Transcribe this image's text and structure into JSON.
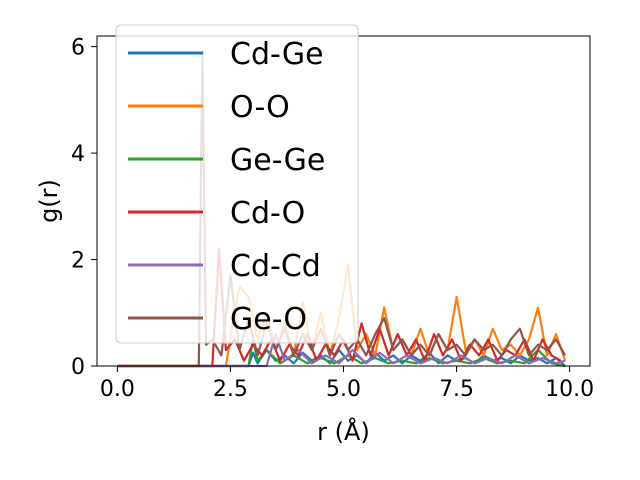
{
  "chart_data": {
    "type": "line",
    "xlabel": "r (Å)",
    "ylabel": "g(r)",
    "xlim": [
      -0.45,
      10.45
    ],
    "ylim": [
      0,
      6.2
    ],
    "xticks": [
      0.0,
      2.5,
      5.0,
      7.5,
      10.0
    ],
    "xtick_labels": [
      "0.0",
      "2.5",
      "5.0",
      "7.5",
      "10.0"
    ],
    "yticks": [
      0,
      2,
      4,
      6
    ],
    "ytick_labels": [
      "0",
      "2",
      "4",
      "6"
    ],
    "grid": false,
    "legend_position": "upper-left",
    "series": [
      {
        "name": "Cd-Ge",
        "color": "#1f77b4",
        "x": [
          0,
          2.9,
          3.0,
          3.1,
          3.3,
          3.5,
          3.7,
          3.9,
          4.1,
          4.3,
          4.5,
          4.7,
          4.9,
          5.1,
          5.3,
          5.5,
          5.7,
          5.9,
          6.1,
          6.3,
          6.5,
          6.7,
          6.9,
          7.1,
          7.3,
          7.5,
          7.7,
          7.9,
          8.1,
          8.3,
          8.5,
          8.7,
          8.9,
          9.1,
          9.3,
          9.5,
          9.7,
          9.9
        ],
        "y": [
          0,
          0,
          0.25,
          0.05,
          0.3,
          0.1,
          0.2,
          0.05,
          0.25,
          0.1,
          0.2,
          0.05,
          0.3,
          0.1,
          0.2,
          0.05,
          0.25,
          0.1,
          0.2,
          0.05,
          0.2,
          0.1,
          0.25,
          0.05,
          0.2,
          0.1,
          0.15,
          0.05,
          0.2,
          0.1,
          0.15,
          0.05,
          0.2,
          0.1,
          0.15,
          0.05,
          0.15,
          0
        ]
      },
      {
        "name": "O-O",
        "color": "#ff7f0e",
        "x": [
          0,
          2.4,
          2.55,
          2.7,
          2.9,
          3.1,
          3.3,
          3.5,
          3.7,
          3.9,
          4.1,
          4.3,
          4.5,
          4.7,
          4.9,
          5.1,
          5.3,
          5.5,
          5.7,
          5.9,
          6.1,
          6.3,
          6.5,
          6.7,
          6.9,
          7.1,
          7.3,
          7.5,
          7.7,
          7.9,
          8.1,
          8.3,
          8.5,
          8.7,
          8.9,
          9.1,
          9.3,
          9.5,
          9.7,
          9.9
        ],
        "y": [
          0,
          0,
          0.8,
          1.5,
          1.3,
          0.5,
          1.0,
          0.3,
          0.8,
          0.2,
          1.2,
          0.3,
          1.0,
          0.2,
          0.9,
          1.9,
          0.3,
          0.6,
          0.2,
          1.1,
          0.3,
          0.5,
          0.2,
          0.7,
          0.2,
          0.6,
          0.3,
          1.3,
          0.3,
          0.5,
          0.2,
          0.7,
          0.3,
          0.4,
          0.2,
          0.5,
          1.1,
          0.2,
          0.6,
          0.1
        ]
      },
      {
        "name": "Ge-Ge",
        "color": "#2ca02c",
        "x": [
          0,
          2.9,
          3.0,
          3.1,
          3.3,
          3.6,
          3.9,
          4.2,
          4.5,
          4.8,
          5.1,
          5.4,
          5.7,
          6.0,
          6.3,
          6.6,
          6.9,
          7.2,
          7.5,
          7.8,
          8.1,
          8.4,
          8.7,
          9.0,
          9.3,
          9.6,
          9.9
        ],
        "y": [
          0,
          0,
          0.5,
          0.1,
          0.3,
          0.05,
          0.2,
          0.05,
          0.15,
          0.05,
          0.2,
          0.05,
          0.15,
          0.05,
          0.1,
          0.05,
          0.15,
          0.05,
          0.1,
          0.05,
          0.15,
          0.05,
          0.1,
          0.05,
          0.3,
          0.05,
          0
        ]
      },
      {
        "name": "Cd-O",
        "color": "#d62728",
        "x": [
          0,
          2.1,
          2.25,
          2.4,
          2.6,
          2.8,
          3.0,
          3.2,
          3.4,
          3.6,
          3.8,
          4.0,
          4.2,
          4.4,
          4.6,
          4.8,
          5.0,
          5.2,
          5.4,
          5.6,
          5.8,
          6.0,
          6.2,
          6.4,
          6.6,
          6.8,
          7.0,
          7.2,
          7.4,
          7.6,
          7.8,
          8.0,
          8.2,
          8.4,
          8.6,
          8.8,
          9.0,
          9.2,
          9.4,
          9.6,
          9.8
        ],
        "y": [
          0,
          0,
          2.2,
          0.3,
          0.5,
          0.1,
          0.4,
          0.2,
          0.5,
          0.1,
          0.4,
          0.2,
          0.6,
          0.1,
          0.4,
          0.2,
          0.5,
          0.1,
          0.8,
          0.2,
          0.7,
          0.2,
          0.6,
          0.2,
          0.5,
          0.1,
          0.6,
          0.2,
          0.5,
          0.1,
          0.4,
          0.2,
          0.5,
          0.1,
          0.3,
          0.2,
          0.5,
          0.1,
          0.5,
          0.2,
          0.1
        ]
      },
      {
        "name": "Cd-Cd",
        "color": "#9467bd",
        "x": [
          0,
          3.3,
          3.5,
          3.7,
          4.0,
          4.3,
          4.6,
          4.9,
          5.2,
          5.5,
          5.8,
          6.1,
          6.4,
          6.7,
          7.0,
          7.3,
          7.6,
          7.9,
          8.2,
          8.5,
          8.8,
          9.1,
          9.4,
          9.7,
          9.9
        ],
        "y": [
          0,
          0,
          0.6,
          0.1,
          0.3,
          0.05,
          0.2,
          0.05,
          0.3,
          0.05,
          0.25,
          0.05,
          0.2,
          0.05,
          0.15,
          0.05,
          0.2,
          0.05,
          0.15,
          0.05,
          0.2,
          0.05,
          0.15,
          0.05,
          0.1
        ]
      },
      {
        "name": "Ge-O",
        "color": "#8c564b",
        "x": [
          0,
          1.8,
          1.88,
          1.96,
          2.1,
          2.3,
          2.5,
          2.7,
          2.9,
          3.1,
          3.3,
          3.5,
          3.7,
          3.9,
          4.1,
          4.3,
          4.5,
          4.7,
          4.9,
          5.1,
          5.3,
          5.5,
          5.7,
          5.9,
          6.1,
          6.3,
          6.5,
          6.7,
          6.9,
          7.1,
          7.3,
          7.5,
          7.7,
          7.9,
          8.1,
          8.3,
          8.5,
          8.7,
          8.9,
          9.1,
          9.3,
          9.5,
          9.7,
          9.9
        ],
        "y": [
          0,
          0,
          5.9,
          0.4,
          0.5,
          0.2,
          1.7,
          0.3,
          0.9,
          0.2,
          0.8,
          0.3,
          0.7,
          0.2,
          0.6,
          0.3,
          0.7,
          0.2,
          0.6,
          0.3,
          0.5,
          0.2,
          0.6,
          0.9,
          0.3,
          0.5,
          0.2,
          0.4,
          0.2,
          0.6,
          0.3,
          0.4,
          0.2,
          0.5,
          0.3,
          0.4,
          0.2,
          0.5,
          0.7,
          0.2,
          0.4,
          0.3,
          0.5,
          0.2
        ]
      }
    ]
  }
}
